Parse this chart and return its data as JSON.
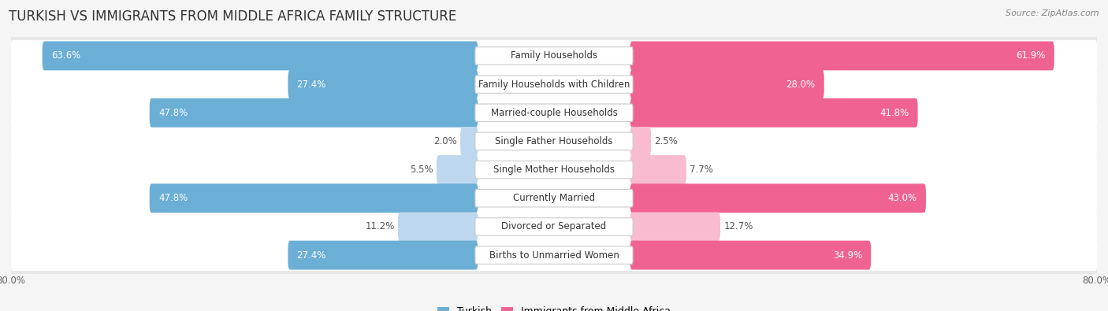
{
  "title": "TURKISH VS IMMIGRANTS FROM MIDDLE AFRICA FAMILY STRUCTURE",
  "source": "Source: ZipAtlas.com",
  "categories": [
    "Family Households",
    "Family Households with Children",
    "Married-couple Households",
    "Single Father Households",
    "Single Mother Households",
    "Currently Married",
    "Divorced or Separated",
    "Births to Unmarried Women"
  ],
  "turkish_values": [
    63.6,
    27.4,
    47.8,
    2.0,
    5.5,
    47.8,
    11.2,
    27.4
  ],
  "immigrant_values": [
    61.9,
    28.0,
    41.8,
    2.5,
    7.7,
    43.0,
    12.7,
    34.9
  ],
  "turkish_color_strong": "#6BAED6",
  "turkish_color_light": "#BDD7EE",
  "immigrant_color_strong": "#F06292",
  "immigrant_color_light": "#F8BBD0",
  "axis_max": 80.0,
  "row_bg_color": "#e8e8e8",
  "inner_bg_color": "#f5f5f5",
  "background_color": "#f5f5f5",
  "strong_threshold": 15.0,
  "label_font_size": 8.5,
  "value_font_size": 8.5,
  "title_font_size": 12,
  "legend_turkish": "Turkish",
  "legend_immigrant": "Immigrants from Middle Africa"
}
